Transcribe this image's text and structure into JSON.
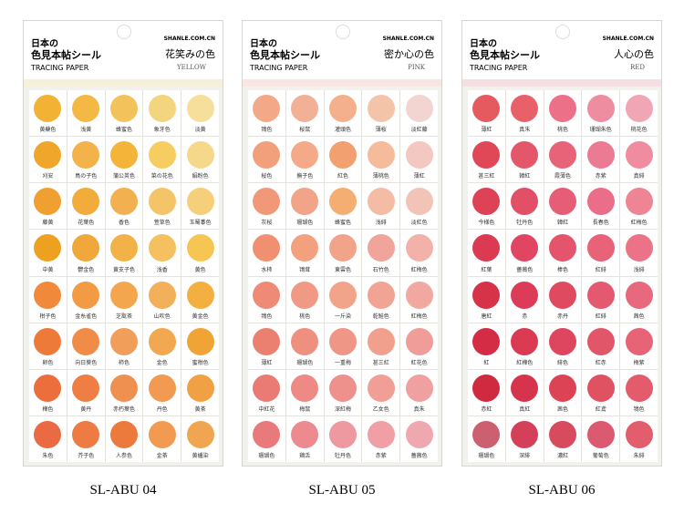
{
  "sheets": [
    {
      "title_line1": "日本の",
      "title_line2": "色見本帖シール",
      "site": "SHANLE.COM.CN",
      "subtitle": "TRACING PAPER",
      "theme_name": "花笑みの色",
      "theme_en": "YELLOW",
      "code": "SL-ABU 04",
      "band_color": "#f6efd9",
      "rows": [
        [
          {
            "name": "黄蘗色",
            "color": "#f2b233"
          },
          {
            "name": "浅黄",
            "color": "#f4b844"
          },
          {
            "name": "蜂蜜色",
            "color": "#f3c25a"
          },
          {
            "name": "象牙色",
            "color": "#f3d580"
          },
          {
            "name": "淡黄",
            "color": "#f6df9a"
          }
        ],
        [
          {
            "name": "刈安",
            "color": "#f0a62a"
          },
          {
            "name": "鳥の子色",
            "color": "#f3b24a"
          },
          {
            "name": "蒲公英色",
            "color": "#f4b43a"
          },
          {
            "name": "菜の花色",
            "color": "#f6cd60"
          },
          {
            "name": "絹粉色",
            "color": "#f6d88a"
          }
        ],
        [
          {
            "name": "藤黄",
            "color": "#f0a030"
          },
          {
            "name": "花葉色",
            "color": "#f2ac3c"
          },
          {
            "name": "香色",
            "color": "#f2b050"
          },
          {
            "name": "萱草色",
            "color": "#f4c468"
          },
          {
            "name": "玉蜀黍色",
            "color": "#f5cf7a"
          }
        ],
        [
          {
            "name": "中黄",
            "color": "#eea020"
          },
          {
            "name": "鬱金色",
            "color": "#f0a83a"
          },
          {
            "name": "黄支子色",
            "color": "#f2b248"
          },
          {
            "name": "浅香",
            "color": "#f4c060"
          },
          {
            "name": "黄色",
            "color": "#f6c552"
          }
        ],
        [
          {
            "name": "柑子色",
            "color": "#f08a3a"
          },
          {
            "name": "金糸雀色",
            "color": "#f29a44"
          },
          {
            "name": "芝翫茶",
            "color": "#f3a64e"
          },
          {
            "name": "山吹色",
            "color": "#f2b05a"
          },
          {
            "name": "黄金色",
            "color": "#f3b040"
          }
        ],
        [
          {
            "name": "卵色",
            "color": "#ee7a3a"
          },
          {
            "name": "向日葵色",
            "color": "#f08c48"
          },
          {
            "name": "柿色",
            "color": "#f19e5a"
          },
          {
            "name": "金色",
            "color": "#f2a850"
          },
          {
            "name": "蜜柑色",
            "color": "#f0a436"
          }
        ],
        [
          {
            "name": "樺色",
            "color": "#ec6e3c"
          },
          {
            "name": "黄丹",
            "color": "#ee7e44"
          },
          {
            "name": "赤朽葉色",
            "color": "#f09050"
          },
          {
            "name": "丹色",
            "color": "#f29a52"
          },
          {
            "name": "黄茶",
            "color": "#f2a044"
          }
        ],
        [
          {
            "name": "朱色",
            "color": "#ea6a44"
          },
          {
            "name": "芥子色",
            "color": "#ee7a44"
          },
          {
            "name": "人参色",
            "color": "#ec7a3c"
          },
          {
            "name": "金茶",
            "color": "#f29a52"
          },
          {
            "name": "黄櫨染",
            "color": "#f0a650"
          }
        ]
      ]
    },
    {
      "title_line1": "日本の",
      "title_line2": "色見本帖シール",
      "site": "SHANLE.COM.CN",
      "subtitle": "TRACING PAPER",
      "theme_name": "密か心の色",
      "theme_en": "PINK",
      "code": "SL-ABU 05",
      "band_color": "#f7e6e2",
      "rows": [
        [
          {
            "name": "鴇色",
            "color": "#f3a888"
          },
          {
            "name": "桜鼠",
            "color": "#f2b096"
          },
          {
            "name": "灌頭色",
            "color": "#f4b08c"
          },
          {
            "name": "薄桜",
            "color": "#f4c4a8"
          },
          {
            "name": "淡紅藤",
            "color": "#f2d4d0"
          }
        ],
        [
          {
            "name": "桜色",
            "color": "#f2a07c"
          },
          {
            "name": "撫子色",
            "color": "#f4aa88"
          },
          {
            "name": "紅色",
            "color": "#f2a070"
          },
          {
            "name": "薄桃色",
            "color": "#f4bc9a"
          },
          {
            "name": "薄紅",
            "color": "#f3c8c0"
          }
        ],
        [
          {
            "name": "灰桜",
            "color": "#f19878"
          },
          {
            "name": "珊瑚色",
            "color": "#f2a488"
          },
          {
            "name": "蜂蜜色",
            "color": "#f4ae72"
          },
          {
            "name": "浅緋",
            "color": "#f4bca4"
          },
          {
            "name": "淡紅色",
            "color": "#f2c4b8"
          }
        ],
        [
          {
            "name": "水柿",
            "color": "#f09070"
          },
          {
            "name": "鴇茸",
            "color": "#f2a07e"
          },
          {
            "name": "東雲色",
            "color": "#f2a48a"
          },
          {
            "name": "石竹色",
            "color": "#f0a49a"
          },
          {
            "name": "紅梅色",
            "color": "#f2b2aa"
          }
        ],
        [
          {
            "name": "鴇色",
            "color": "#ee8a76"
          },
          {
            "name": "桃色",
            "color": "#f09a86"
          },
          {
            "name": "一斤染",
            "color": "#f2a48a"
          },
          {
            "name": "乾鮭色",
            "color": "#f2a494"
          },
          {
            "name": "紅梅色",
            "color": "#f0a8a0"
          }
        ],
        [
          {
            "name": "薄紅",
            "color": "#ec8070"
          },
          {
            "name": "珊瑚色",
            "color": "#ee9080"
          },
          {
            "name": "一重梅",
            "color": "#f09686"
          },
          {
            "name": "甚三紅",
            "color": "#f2a08e"
          },
          {
            "name": "紅花色",
            "color": "#f09c98"
          }
        ],
        [
          {
            "name": "中紅花",
            "color": "#ea7a74"
          },
          {
            "name": "梅鼠",
            "color": "#ee8a86"
          },
          {
            "name": "深紅梅",
            "color": "#ee908c"
          },
          {
            "name": "乙女色",
            "color": "#f09e96"
          },
          {
            "name": "真朱",
            "color": "#f0a0a0"
          }
        ],
        [
          {
            "name": "珊瑚色",
            "color": "#e87a7c"
          },
          {
            "name": "鶏舌",
            "color": "#ec8a90"
          },
          {
            "name": "牡丹色",
            "color": "#ee98a0"
          },
          {
            "name": "赤紫",
            "color": "#f0a0a4"
          },
          {
            "name": "薔薇色",
            "color": "#f0a8b0"
          }
        ]
      ]
    },
    {
      "title_line1": "日本の",
      "title_line2": "色見本帖シール",
      "site": "SHANLE.COM.CN",
      "subtitle": "TRACING PAPER",
      "theme_name": "人心の色",
      "theme_en": "RED",
      "code": "SL-ABU 06",
      "band_color": "#f6dfe2",
      "rows": [
        [
          {
            "name": "薄紅",
            "color": "#e45a5e"
          },
          {
            "name": "真朱",
            "color": "#e8606a"
          },
          {
            "name": "桃色",
            "color": "#ec7088"
          },
          {
            "name": "珊瑚朱色",
            "color": "#ee8ca0"
          },
          {
            "name": "桃花色",
            "color": "#f0a6b4"
          }
        ],
        [
          {
            "name": "甚三紅",
            "color": "#e04858"
          },
          {
            "name": "韓紅",
            "color": "#e4566a"
          },
          {
            "name": "霞薄色",
            "color": "#e86278"
          },
          {
            "name": "赤紫",
            "color": "#ec7a92"
          },
          {
            "name": "真緋",
            "color": "#f08ca0"
          }
        ],
        [
          {
            "name": "今様色",
            "color": "#de4256"
          },
          {
            "name": "牡丹色",
            "color": "#e25068"
          },
          {
            "name": "韓紅",
            "color": "#e65e76"
          },
          {
            "name": "長春色",
            "color": "#ea6e8a"
          },
          {
            "name": "紅梅色",
            "color": "#ee8494"
          }
        ],
        [
          {
            "name": "紅葉",
            "color": "#dc3a52"
          },
          {
            "name": "薔薇色",
            "color": "#e04662"
          },
          {
            "name": "棒色",
            "color": "#e4546c"
          },
          {
            "name": "紅緋",
            "color": "#e86278"
          },
          {
            "name": "浅緋",
            "color": "#ec7288"
          }
        ],
        [
          {
            "name": "唐紅",
            "color": "#d63248"
          },
          {
            "name": "赤",
            "color": "#dc3c58"
          },
          {
            "name": "赤丹",
            "color": "#e04a60"
          },
          {
            "name": "紅緋",
            "color": "#e45870"
          },
          {
            "name": "茜色",
            "color": "#e8687e"
          }
        ],
        [
          {
            "name": "紅",
            "color": "#d42c44"
          },
          {
            "name": "紅樺色",
            "color": "#da3a52"
          },
          {
            "name": "緋色",
            "color": "#de4660"
          },
          {
            "name": "紅赤",
            "color": "#e2566a"
          },
          {
            "name": "梅紫",
            "color": "#e66476"
          }
        ],
        [
          {
            "name": "赤紅",
            "color": "#d02a40"
          },
          {
            "name": "真紅",
            "color": "#d6344c"
          },
          {
            "name": "茜色",
            "color": "#dc4456"
          },
          {
            "name": "紅鳶",
            "color": "#e05262"
          },
          {
            "name": "鴇色",
            "color": "#e45c6c"
          }
        ],
        [
          {
            "name": "珊瑚色",
            "color": "#cc6070"
          },
          {
            "name": "深緋",
            "color": "#d4405a"
          },
          {
            "name": "濃紅",
            "color": "#d84a5e"
          },
          {
            "name": "葡萄色",
            "color": "#dc5a70"
          },
          {
            "name": "朱緋",
            "color": "#e25e6c"
          }
        ]
      ]
    }
  ]
}
